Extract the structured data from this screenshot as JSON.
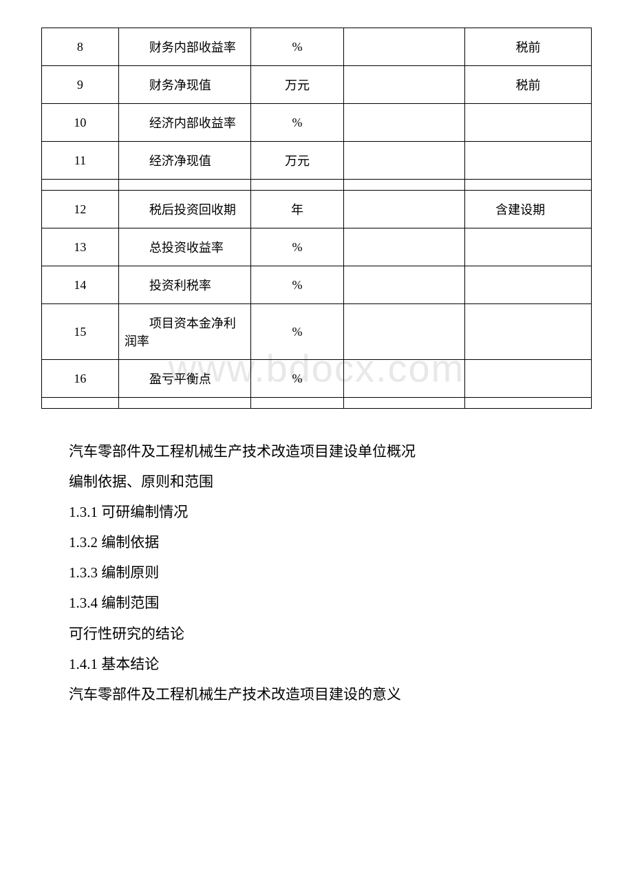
{
  "watermark": "www.bdocx.com",
  "table": {
    "rows": [
      {
        "num": "8",
        "name": "财务内部收益率",
        "unit": "%",
        "value": "",
        "note": "税前",
        "noteCenter": true
      },
      {
        "num": "9",
        "name": "财务净现值",
        "unit": "万元",
        "value": "",
        "note": "税前",
        "noteCenter": true
      },
      {
        "num": "10",
        "name": "经济内部收益率",
        "unit": "%",
        "value": "",
        "note": ""
      },
      {
        "num": "11",
        "name": "经济净现值",
        "unit": "万元",
        "value": "",
        "note": ""
      },
      {
        "spacer": true
      },
      {
        "num": "12",
        "name": "税后投资回收期",
        "unit": "年",
        "value": "",
        "note": "含建设期"
      },
      {
        "num": "13",
        "name": "总投资收益率",
        "unit": "%",
        "value": "",
        "note": ""
      },
      {
        "num": "14",
        "name": "投资利税率",
        "unit": "%",
        "value": "",
        "note": ""
      },
      {
        "num": "15",
        "name": "项目资本金净利润率",
        "unit": "%",
        "value": "",
        "note": ""
      },
      {
        "num": "16",
        "name": "盈亏平衡点",
        "unit": "%",
        "value": "",
        "note": ""
      },
      {
        "spacer": true
      }
    ]
  },
  "paragraphs": [
    "汽车零部件及工程机械生产技术改造项目建设单位概况",
    "编制依据、原则和范围",
    "1.3.1 可研编制情况",
    "1.3.2 编制依据",
    "1.3.3 编制原则",
    "1.3.4 编制范围",
    "可行性研究的结论",
    "1.4.1 基本结论",
    "汽车零部件及工程机械生产技术改造项目建设的意义"
  ]
}
